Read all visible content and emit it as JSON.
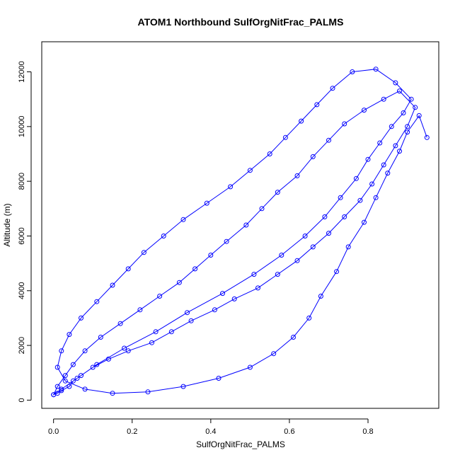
{
  "chart_data": {
    "type": "line",
    "title": "ATOM1 Northbound SulfOrgNitFrac_PALMS",
    "xlabel": "SulfOrgNitFrac_PALMS",
    "ylabel": "Altitude (m)",
    "xlim": [
      -0.03,
      0.98
    ],
    "ylim": [
      -300,
      13100
    ],
    "xticks": [
      0.0,
      0.2,
      0.4,
      0.6,
      0.8
    ],
    "xtick_labels": [
      "0.0",
      "0.2",
      "0.4",
      "0.6",
      "0.8"
    ],
    "yticks": [
      0,
      2000,
      4000,
      6000,
      8000,
      10000,
      12000
    ],
    "ytick_labels": [
      "0",
      "2000",
      "4000",
      "6000",
      "8000",
      "10000",
      "12000"
    ],
    "grid": false,
    "legend": "none",
    "line_color": "#0000ff",
    "marker": "open-circle",
    "series": [
      {
        "x": [
          0.0,
          0.01,
          0.02,
          0.04,
          0.05,
          0.07,
          0.1,
          0.14,
          0.19,
          0.25,
          0.3,
          0.35,
          0.41,
          0.46,
          0.52,
          0.57,
          0.62,
          0.66,
          0.7,
          0.74,
          0.78,
          0.81,
          0.84,
          0.87,
          0.9,
          0.92,
          0.88,
          0.84,
          0.79,
          0.74,
          0.7,
          0.66,
          0.62,
          0.57,
          0.53,
          0.49,
          0.44,
          0.4,
          0.36,
          0.32,
          0.27,
          0.22,
          0.17,
          0.12,
          0.08,
          0.05,
          0.03,
          0.01,
          0.0,
          0.02,
          0.06,
          0.11,
          0.18,
          0.26,
          0.34,
          0.43,
          0.51,
          0.58,
          0.64,
          0.69,
          0.73,
          0.77,
          0.8,
          0.83,
          0.86,
          0.89,
          0.91,
          0.87,
          0.82,
          0.76,
          0.71,
          0.67,
          0.63,
          0.59,
          0.55,
          0.5,
          0.45,
          0.39,
          0.33,
          0.28,
          0.23,
          0.19,
          0.15,
          0.11,
          0.07,
          0.04,
          0.02,
          0.01,
          0.03,
          0.08,
          0.15,
          0.24,
          0.33,
          0.42,
          0.5,
          0.56,
          0.61,
          0.65,
          0.68,
          0.72,
          0.75,
          0.79,
          0.82,
          0.85,
          0.88,
          0.9,
          0.93,
          0.95
        ],
        "y": [
          200,
          250,
          350,
          500,
          700,
          900,
          1200,
          1500,
          1800,
          2100,
          2500,
          2900,
          3300,
          3700,
          4100,
          4600,
          5100,
          5600,
          6100,
          6700,
          7300,
          7900,
          8600,
          9300,
          10000,
          10700,
          11300,
          11000,
          10600,
          10100,
          9500,
          8900,
          8200,
          7600,
          7000,
          6400,
          5800,
          5300,
          4800,
          4300,
          3800,
          3300,
          2800,
          2300,
          1800,
          1300,
          900,
          500,
          200,
          400,
          800,
          1300,
          1900,
          2500,
          3200,
          3900,
          4600,
          5300,
          6000,
          6700,
          7400,
          8100,
          8800,
          9400,
          10000,
          10500,
          11000,
          11600,
          12100,
          12000,
          11400,
          10800,
          10200,
          9600,
          9000,
          8400,
          7800,
          7200,
          6600,
          6000,
          5400,
          4800,
          4200,
          3600,
          3000,
          2400,
          1800,
          1200,
          700,
          400,
          250,
          300,
          500,
          800,
          1200,
          1700,
          2300,
          3000,
          3800,
          4700,
          5600,
          6500,
          7400,
          8300,
          9100,
          9800,
          10400,
          9600
        ]
      }
    ]
  }
}
